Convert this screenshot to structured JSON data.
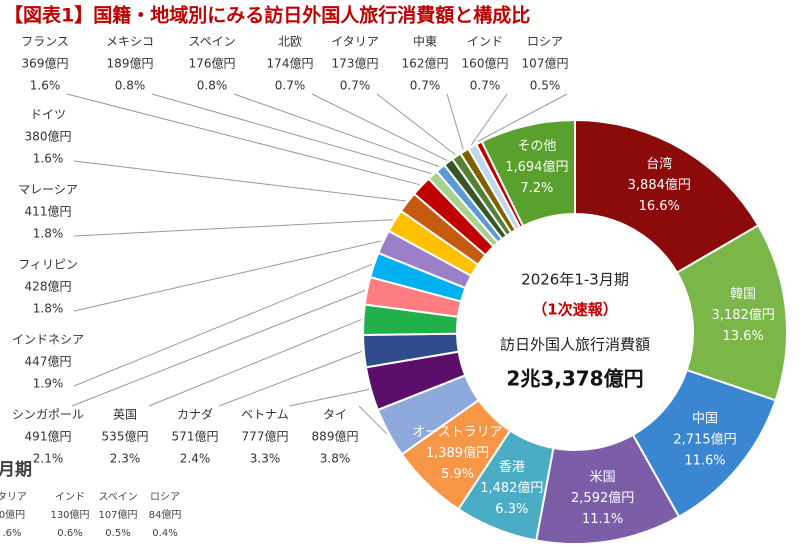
{
  "chart_data": {
    "type": "pie",
    "donut": true,
    "title": "【図表1】国籍・地域別にみる訪日外国人旅行消費額と構成比",
    "center": {
      "period": "2026年1-3月期",
      "note": "（1次速報）",
      "metric": "訪日外国人旅行消費額",
      "total": "2兆3,378億円"
    },
    "categories": [
      "台湾",
      "韓国",
      "中国",
      "米国",
      "香港",
      "オーストラリア",
      "タイ",
      "ベトナム",
      "カナダ",
      "英国",
      "シンガポール",
      "インドネシア",
      "フィリピン",
      "マレーシア",
      "ドイツ",
      "フランス",
      "メキシコ",
      "スペイン",
      "北欧",
      "イタリア",
      "中東",
      "インド",
      "ロシア",
      "その他"
    ],
    "values": [
      3884,
      3182,
      2715,
      2592,
      1482,
      1389,
      889,
      777,
      571,
      535,
      491,
      447,
      428,
      411,
      380,
      369,
      189,
      176,
      174,
      173,
      162,
      160,
      107,
      1694
    ],
    "value_labels": [
      "3,884億円",
      "3,182億円",
      "2,715億円",
      "2,592億円",
      "1,482億円",
      "1,389億円",
      "889億円",
      "777億円",
      "571億円",
      "535億円",
      "491億円",
      "447億円",
      "428億円",
      "411億円",
      "380億円",
      "369億円",
      "189億円",
      "176億円",
      "174億円",
      "173億円",
      "162億円",
      "160億円",
      "107億円",
      "1,694億円"
    ],
    "percent_values": [
      16.6,
      13.6,
      11.6,
      11.1,
      6.3,
      5.9,
      3.8,
      3.3,
      2.4,
      2.3,
      2.1,
      1.9,
      1.8,
      1.8,
      1.6,
      1.6,
      0.8,
      0.8,
      0.7,
      0.7,
      0.7,
      0.7,
      0.5,
      7.2
    ],
    "percent_labels": [
      "16.6%",
      "13.6%",
      "11.6%",
      "11.1%",
      "6.3%",
      "5.9%",
      "3.8%",
      "3.3%",
      "2.4%",
      "2.3%",
      "2.1%",
      "1.9%",
      "1.8%",
      "1.8%",
      "1.6%",
      "1.6%",
      "0.8%",
      "0.8%",
      "0.7%",
      "0.7%",
      "0.7%",
      "0.7%",
      "0.5%",
      "7.2%"
    ],
    "colors": [
      "#8b0a0a",
      "#7ab648",
      "#3a86d0",
      "#7b5ea7",
      "#4bacc6",
      "#f79646",
      "#8ea9db",
      "#5b0f6b",
      "#2f4b8c",
      "#22b04b",
      "#ff7c80",
      "#00b0f0",
      "#9b7fc9",
      "#ffc000",
      "#c55a11",
      "#c00000",
      "#a9d18e",
      "#5b9bd5",
      "#375623",
      "#548235",
      "#7f6000",
      "#bdd7ee",
      "#c00000",
      "#5aa02c"
    ]
  },
  "cropped_panel": {
    "title": "月期",
    "items": [
      {
        "name": "タリア",
        "value": "0億円",
        "share": ".6%"
      },
      {
        "name": "インド",
        "value": "130億円",
        "share": "0.6%"
      },
      {
        "name": "スペイン",
        "value": "107億円",
        "share": "0.5%"
      },
      {
        "name": "ロシア",
        "value": "84億円",
        "share": "0.4%"
      }
    ]
  }
}
